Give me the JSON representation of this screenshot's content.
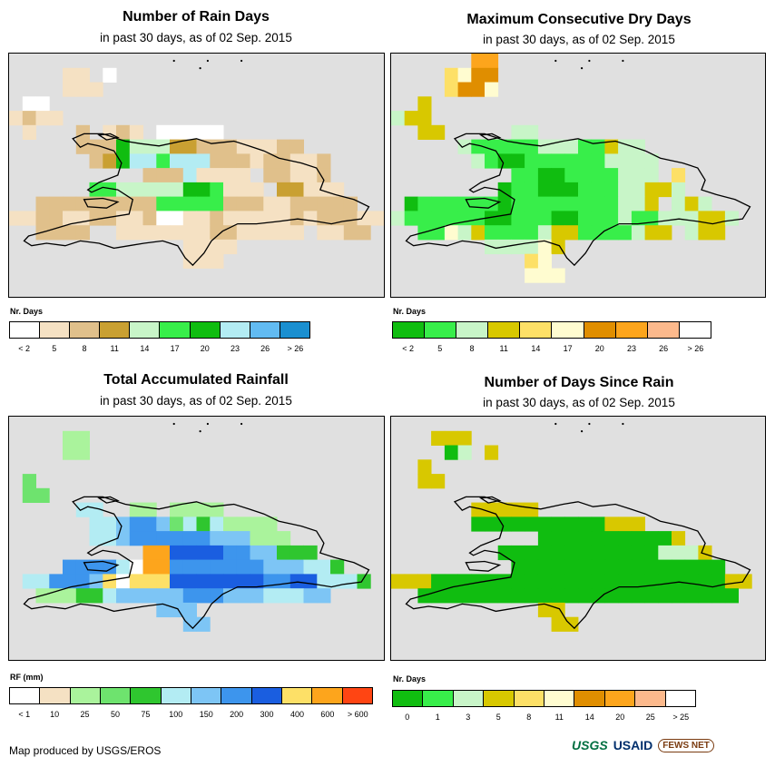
{
  "panels": [
    {
      "id": "rain-days",
      "title": "Number of Rain Days",
      "subtitle": "in past 30 days, as of 02 Sep. 2015",
      "legend_title": "Nr. Days",
      "legend_colors": [
        "#ffffff",
        "#f5e1c3",
        "#e0c08b",
        "#c9a032",
        "#c8f5c8",
        "#38ee4a",
        "#10bd10",
        "#b3ecf3",
        "#62bbf2",
        "#1a8fd0"
      ],
      "legend_labels": [
        "< 2",
        "5",
        "8",
        "11",
        "14",
        "17",
        "20",
        "23",
        "26",
        "> 26"
      ],
      "map_cells": [
        "............................",
        "....bb.a....................",
        "....bbb.....................",
        ".aa.........................",
        "bcbb........................",
        ".b...c.bcb.aaaaa............",
        ".....cccgeeeddcccbbbcc......",
        "......cdghhfhhhcccbccbbc....",
        "..........ccchbbbb.ccbbc....",
        "......ffeeeeeggfbbb.ddbbb...",
        "..cccccccccfffffcccbbccccc..",
        "bbccbbccbbcaabbcbbbbbcbcccbb",
        "..cccc..bbbbbbbccbbbbb.bbcc.",
        ".............bbbb...........",
        ".............bbb............",
        "............................",
        "............................"
      ]
    },
    {
      "id": "dry-days",
      "title": "Maximum Consecutive Dry Days",
      "subtitle": "in past 30 days, as of 02 Sep. 2015",
      "legend_title": "Nr. Days",
      "legend_colors": [
        "#10bd10",
        "#38ee4a",
        "#c8f5c8",
        "#d8c800",
        "#fde067",
        "#fffcd0",
        "#e08e00",
        "#fda51c",
        "#fcb98c",
        "#ffffff"
      ],
      "legend_labels": [
        "< 2",
        "5",
        "8",
        "11",
        "14",
        "17",
        "20",
        "23",
        "26",
        "> 26"
      ],
      "map_cells": [
        "......hh....................",
        "....efgg....................",
        "....eggf....................",
        "..d.........................",
        "cdd.........................",
        "..dd.....cc.................",
        ".....cbbbbbcccbbdcc.........",
        "......cbaabbbbbbcccc........",
        ".........bbaabbbbccc.e......",
        "........abbaaabbbccddc......",
        ".abbbbbbabbbbbbbbccd.cdc....",
        "cbbbbbbaabbbaabbbcbbcccddc..",
        "..bbfcdbbbbcddbbbbcdd.cdd...",
        ".......ccccfd...............",
        "..........ef................",
        "..........fff...............",
        "............................"
      ]
    },
    {
      "id": "rainfall",
      "title": "Total Accumulated Rainfall",
      "subtitle": "in past 30 days, as of 02 Sep. 2015",
      "legend_title": "RF (mm)",
      "legend_colors": [
        "#ffffff",
        "#f5e1c3",
        "#aaf39c",
        "#6ee36e",
        "#2fc62f",
        "#b3ecf3",
        "#7dc5f5",
        "#3d95ed",
        "#1a5ee0",
        "#fde067",
        "#fda51c",
        "#ff4513"
      ],
      "legend_labels": [
        "< 1",
        "10",
        "25",
        "50",
        "75",
        "100",
        "150",
        "200",
        "300",
        "400",
        "600",
        "> 600"
      ],
      "map_cells": [
        "............................",
        "....cc......................",
        "....cc......................",
        "............................",
        ".d..........................",
        ".dd.........................",
        ".....ff..cc.cccc............",
        "......ffghhgdfefcccc........",
        "......ffghhhhhhgggccc.......",
        "..........kkiiiihhggeee.....",
        "....hhhhfakkhhhhhhhgggffe...",
        ".ffhhhgjajjjiiiiiiihhiifffe.",
        "..ccceefggggghhhgggfffgg....",
        "...........ggg..............",
        ".............gg.............",
        "............................",
        "............................"
      ]
    },
    {
      "id": "since-rain",
      "title": "Number of Days Since Rain",
      "subtitle": "in past 30 days, as of 02 Sep. 2015",
      "legend_title": "Nr. Days",
      "legend_colors": [
        "#10bd10",
        "#38ee4a",
        "#c8f5c8",
        "#d8c800",
        "#fde067",
        "#fffcd0",
        "#e08e00",
        "#fda51c",
        "#fcb98c",
        "#ffffff"
      ],
      "legend_labels": [
        "0",
        "1",
        "3",
        "5",
        "8",
        "11",
        "14",
        "20",
        "25",
        "> 25"
      ],
      "map_cells": [
        "............................",
        "...ddd......................",
        "....ac.d....................",
        "..d.........................",
        "..dd........................",
        "............................",
        "......ddddd.................",
        "......aaaaaaaaaaddd.........",
        "...........aaaaaaaaaad......",
        "........aaaaaaaaaaaacccd....",
        ".........aaaaaaaaaaaaaaaa...",
        "dddaaaaaaaaaaaaaaaaaaaaaadd.",
        "..aaaaaaaaaaaaaaaaaaaaaaaa..",
        "...........dd...............",
        "............dd..............",
        "............................",
        "............................"
      ]
    }
  ],
  "credit": "Map produced by USGS/EROS",
  "logos": {
    "usgs": "USGS",
    "usaid": "USAID",
    "fews": "FEWS NET"
  }
}
